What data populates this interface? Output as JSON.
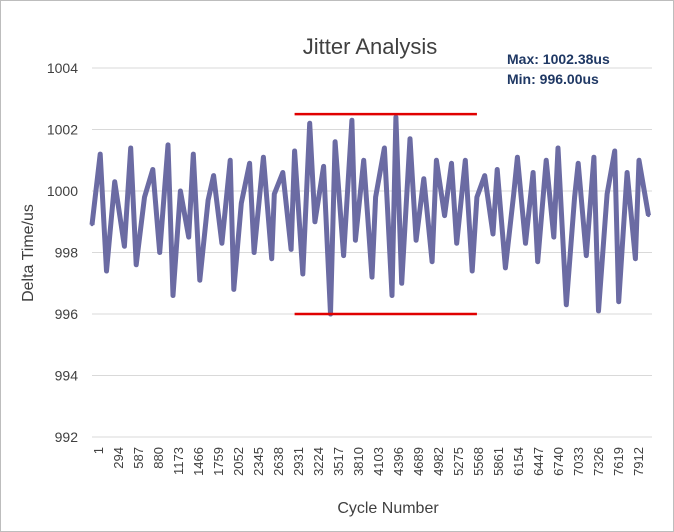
{
  "chart_data": {
    "type": "line",
    "title": "Jitter Analysis",
    "xlabel": "Cycle Number",
    "ylabel": "Delta Time/us",
    "ylim": [
      992,
      1004
    ],
    "yticks": [
      992,
      994,
      996,
      998,
      1000,
      1002,
      1004
    ],
    "xticks": [
      "1",
      "294",
      "587",
      "880",
      "1173",
      "1466",
      "1759",
      "2052",
      "2345",
      "2638",
      "2931",
      "3224",
      "3517",
      "3810",
      "4103",
      "4396",
      "4689",
      "4982",
      "5275",
      "5568",
      "5861",
      "6154",
      "6447",
      "6740",
      "7033",
      "7326",
      "7619",
      "7912"
    ],
    "x_range": [
      1,
      8100
    ],
    "grid": "horizontal",
    "series": [
      {
        "color": "#6b6ba3",
        "x": [
          1,
          120,
          210,
          330,
          470,
          560,
          640,
          760,
          880,
          980,
          1100,
          1173,
          1280,
          1400,
          1466,
          1560,
          1680,
          1759,
          1880,
          2000,
          2052,
          2160,
          2280,
          2345,
          2480,
          2600,
          2638,
          2760,
          2880,
          2931,
          3050,
          3150,
          3224,
          3350,
          3450,
          3517,
          3640,
          3760,
          3810,
          3930,
          4050,
          4103,
          4230,
          4340,
          4396,
          4480,
          4600,
          4689,
          4800,
          4920,
          4982,
          5100,
          5200,
          5275,
          5400,
          5500,
          5568,
          5680,
          5800,
          5861,
          5980,
          6100,
          6154,
          6270,
          6380,
          6447,
          6570,
          6680,
          6740,
          6860,
          6980,
          7033,
          7150,
          7260,
          7326,
          7450,
          7560,
          7619,
          7740,
          7860,
          7912,
          8050
        ],
        "values": [
          998.9,
          1001.2,
          997.4,
          1000.3,
          998.2,
          1001.4,
          997.6,
          999.8,
          1000.7,
          998.0,
          1001.5,
          996.6,
          1000.0,
          998.5,
          1001.2,
          997.1,
          999.7,
          1000.5,
          998.3,
          1001.0,
          996.8,
          999.6,
          1000.9,
          998.0,
          1001.1,
          997.8,
          999.9,
          1000.6,
          998.1,
          1001.3,
          997.3,
          1002.2,
          999.0,
          1000.8,
          996.0,
          1001.6,
          997.9,
          1002.3,
          998.4,
          1001.0,
          997.2,
          999.8,
          1001.4,
          996.6,
          1002.4,
          997.0,
          1001.7,
          998.4,
          1000.4,
          997.7,
          1001.0,
          999.2,
          1000.9,
          998.3,
          1001.0,
          997.4,
          999.8,
          1000.5,
          998.6,
          1000.7,
          997.5,
          999.9,
          1001.1,
          998.3,
          1000.6,
          997.7,
          1001.0,
          998.5,
          1001.4,
          996.3,
          999.8,
          1000.9,
          997.9,
          1001.1,
          996.1,
          999.9,
          1001.3,
          996.4,
          1000.6,
          997.8,
          1001.0,
          999.2
        ]
      }
    ],
    "band": {
      "upper": 1002.5,
      "lower": 996.0,
      "x_start": 2931,
      "x_end": 5568,
      "color": "#e00000"
    }
  },
  "annotations": {
    "max_label": "Max: 1002.38us",
    "min_label": "Min: 996.00us"
  }
}
